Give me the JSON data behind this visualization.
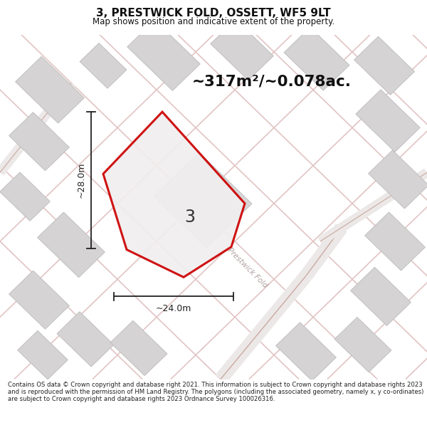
{
  "title": "3, PRESTWICK FOLD, OSSETT, WF5 9LT",
  "subtitle": "Map shows position and indicative extent of the property.",
  "area_label": "~317m²/~0.078ac.",
  "plot_number": "3",
  "road_name": "Prestwick Fold",
  "width_label": "~24.0m",
  "height_label": "~28.0m",
  "footer": "Contains OS data © Crown copyright and database right 2021. This information is subject to Crown copyright and database rights 2023 and is reproduced with the permission of HM Land Registry. The polygons (including the associated geometry, namely x, y co-ordinates) are subject to Crown copyright and database rights 2023 Ordnance Survey 100026316.",
  "map_bg": "#f2f0f0",
  "plot_outline": "#cc0000",
  "building_fill": "#d8d6d6",
  "building_edge": "#bbbbbb",
  "road_pink": "#e8c8c8",
  "road_dark": "#d4a8a8",
  "dim_color": "#222222",
  "text_color": "#111111",
  "road_text_color": "#b0a0a0",
  "white": "#ffffff"
}
